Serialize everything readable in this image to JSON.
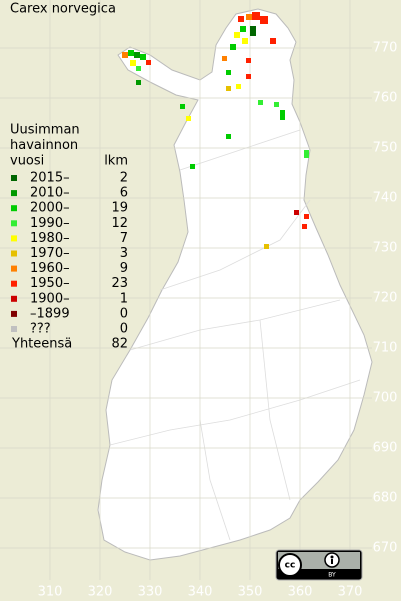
{
  "title": "Carex norvegica",
  "legend": {
    "heading": [
      "Uusimman",
      "havainnon",
      "vuosi"
    ],
    "count_heading": "lkm",
    "rows": [
      {
        "label": "2015–",
        "count": 2,
        "color": "#006600"
      },
      {
        "label": "2010–",
        "count": 6,
        "color": "#009900"
      },
      {
        "label": "2000–",
        "count": 19,
        "color": "#00cc00"
      },
      {
        "label": "1990–",
        "count": 12,
        "color": "#33ee33"
      },
      {
        "label": "1980–",
        "count": 7,
        "color": "#ffff00"
      },
      {
        "label": "1970–",
        "count": 3,
        "color": "#e6c000"
      },
      {
        "label": "1960–",
        "count": 9,
        "color": "#ff8000"
      },
      {
        "label": "1950–",
        "count": 23,
        "color": "#ff2000"
      },
      {
        "label": "1900–",
        "count": 1,
        "color": "#cc0000"
      },
      {
        "label": "–1899",
        "count": 0,
        "color": "#800000"
      },
      {
        "label": "???",
        "count": 0,
        "color": "#c0c0c0"
      }
    ],
    "total_label": "Yhteensä",
    "total": 82
  },
  "x_ticks": [
    310,
    320,
    330,
    340,
    350,
    360,
    370
  ],
  "y_ticks": [
    770,
    760,
    750,
    740,
    730,
    720,
    710,
    700,
    690,
    680,
    670
  ],
  "badge": "BY"
}
